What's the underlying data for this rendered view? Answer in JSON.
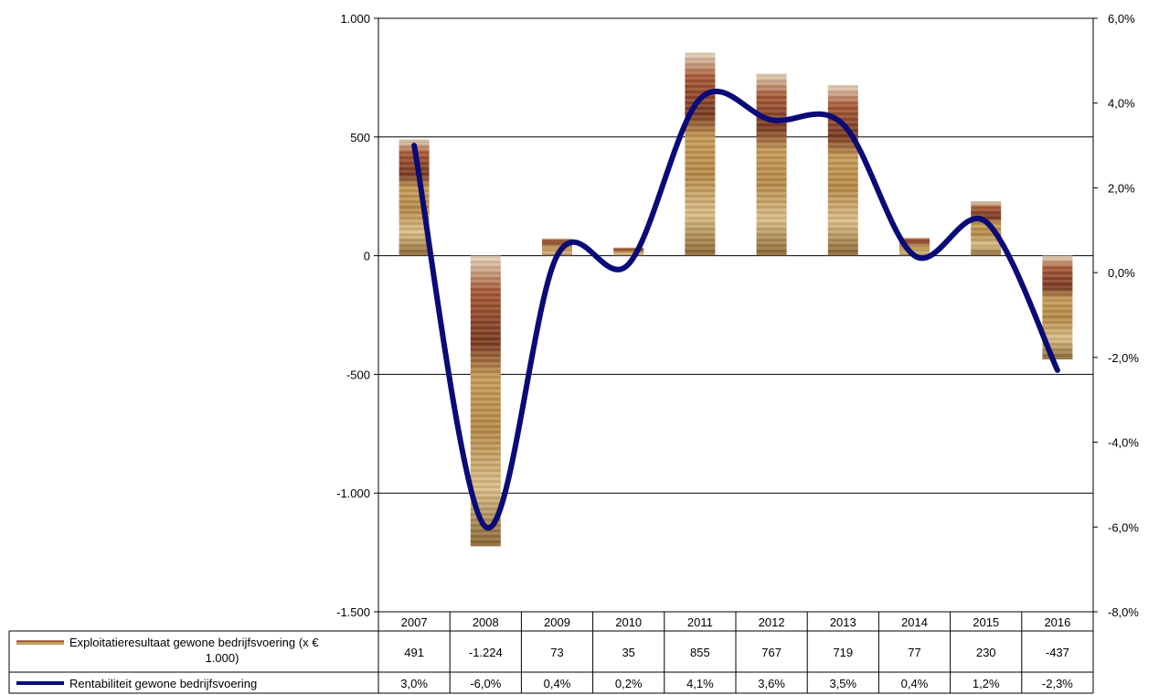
{
  "chart_data": {
    "type": "bar",
    "categories": [
      "2007",
      "2008",
      "2009",
      "2010",
      "2011",
      "2012",
      "2013",
      "2014",
      "2015",
      "2016"
    ],
    "series": [
      {
        "name": "Exploitatieresultaat gewone bedrijfsvoering (x € 1.000)",
        "type": "bar",
        "axis": "left",
        "values": [
          491,
          -1224,
          73,
          35,
          855,
          767,
          719,
          77,
          230,
          -437
        ],
        "labels": [
          "491",
          "-1.224",
          "73",
          "35",
          "855",
          "767",
          "719",
          "77",
          "230",
          "-437"
        ],
        "fill": "coin-photo"
      },
      {
        "name": "Rentabiliteit gewone bedrijfsvoering",
        "type": "line",
        "axis": "right",
        "smooth": true,
        "values": [
          3.0,
          -6.0,
          0.4,
          0.2,
          4.1,
          3.6,
          3.5,
          0.4,
          1.2,
          -2.3
        ],
        "labels": [
          "3,0%",
          "-6,0%",
          "0,4%",
          "0,2%",
          "4,1%",
          "3,6%",
          "3,5%",
          "0,4%",
          "1,2%",
          "-2,3%"
        ],
        "color": "#0a0a78"
      }
    ],
    "left_axis": {
      "ylim": [
        -1500,
        1000
      ],
      "ticks": [
        1000,
        500,
        0,
        -500,
        -1000,
        -1500
      ],
      "tick_labels": [
        "1.000",
        "500",
        "0",
        "-500",
        "-1.000",
        "-1.500"
      ]
    },
    "right_axis": {
      "ylim": [
        -8,
        6
      ],
      "ticks": [
        6,
        4,
        2,
        0,
        -2,
        -4,
        -6,
        -8
      ],
      "tick_labels": [
        "6,0%",
        "4,0%",
        "2,0%",
        "0,0%",
        "-2,0%",
        "-4,0%",
        "-6,0%",
        "-8,0%"
      ]
    },
    "grid": true,
    "data_table": true
  }
}
